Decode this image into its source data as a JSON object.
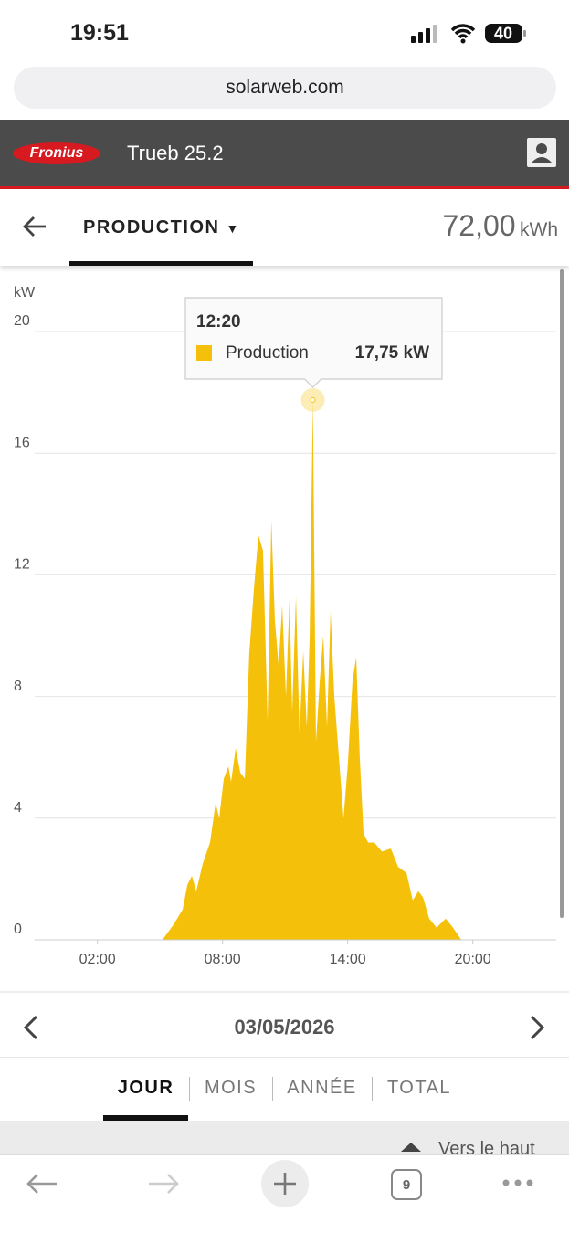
{
  "status_bar": {
    "time": "19:51",
    "battery": "40"
  },
  "browser": {
    "url": "solarweb.com",
    "tab_count": "9"
  },
  "header": {
    "brand": "Fronius",
    "site": "Trueb 25.2"
  },
  "toolbar": {
    "tab": "PRODUCTION",
    "total": "72,00",
    "unit": "kWh"
  },
  "chart_data": {
    "type": "area",
    "y_label": "kW",
    "x": [
      5.12,
      5.65,
      6.09,
      6.31,
      6.53,
      6.74,
      7.05,
      7.4,
      7.67,
      7.84,
      8.06,
      8.28,
      8.41,
      8.63,
      8.85,
      9.07,
      9.28,
      9.5,
      9.72,
      9.94,
      10.16,
      10.34,
      10.51,
      10.69,
      10.86,
      11.04,
      11.21,
      11.34,
      11.52,
      11.69,
      11.87,
      12.04,
      12.18,
      12.33,
      12.48,
      12.66,
      12.83,
      13.01,
      13.18,
      13.36,
      13.58,
      13.8,
      14.01,
      14.23,
      14.41,
      14.58,
      14.76,
      14.98,
      15.28,
      15.64,
      16.07,
      16.42,
      16.82,
      17.12,
      17.39,
      17.61,
      17.91,
      18.26,
      18.7,
      19.05,
      19.45
    ],
    "series": [
      {
        "name": "Production",
        "color": "#f5c00a",
        "values": [
          0,
          0.5,
          1.0,
          1.8,
          2.1,
          1.6,
          2.5,
          3.2,
          4.5,
          4.0,
          5.3,
          5.7,
          5.2,
          6.3,
          5.5,
          5.3,
          9.4,
          11.5,
          13.3,
          12.8,
          7.2,
          13.8,
          10.5,
          9.0,
          11.0,
          8.0,
          11.2,
          7.5,
          11.3,
          6.8,
          9.5,
          7.0,
          10.0,
          17.75,
          6.5,
          8.5,
          10.0,
          7.0,
          10.8,
          8.0,
          6.0,
          4.0,
          5.8,
          8.5,
          9.3,
          6.0,
          3.5,
          3.2,
          3.2,
          2.9,
          3.0,
          2.4,
          2.2,
          1.3,
          1.6,
          1.4,
          0.7,
          0.4,
          0.7,
          0.4,
          0
        ]
      }
    ],
    "xlim": [
      0,
      24
    ],
    "xticks": [
      {
        "value": 2,
        "label": "02:00"
      },
      {
        "value": 8,
        "label": "08:00"
      },
      {
        "value": 14,
        "label": "14:00"
      },
      {
        "value": 20,
        "label": "20:00"
      }
    ],
    "ylim": [
      0,
      20
    ],
    "yticks": [
      0,
      4,
      8,
      12,
      16,
      20
    ],
    "grid": true,
    "tooltip": {
      "index": 33,
      "time": "12:20",
      "value_label": "17,75 kW"
    }
  },
  "date_nav": {
    "date": "03/05/2026"
  },
  "period_tabs": [
    "JOUR",
    "MOIS",
    "ANNÉE",
    "TOTAL"
  ],
  "footer": {
    "back_to_top": "Vers le haut"
  }
}
